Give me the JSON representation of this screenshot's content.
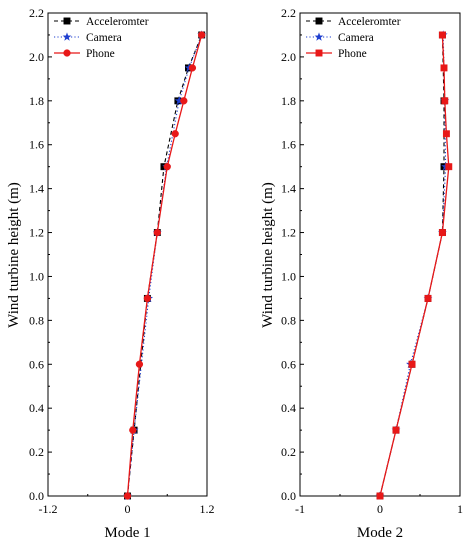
{
  "chart_data": [
    {
      "type": "line",
      "xlabel": "Mode 1",
      "ylabel": "Wind turbine height (m)",
      "xlim": [
        -1.2,
        1.2
      ],
      "ylim": [
        0,
        2.2
      ],
      "xticks": [
        "-1.2",
        "0",
        "1.2"
      ],
      "yticks": [
        "0.0",
        "0.2",
        "0.4",
        "0.6",
        "0.8",
        "1.0",
        "1.2",
        "1.4",
        "1.6",
        "1.8",
        "2.0",
        "2.2"
      ],
      "legend_position": "top-left",
      "grid": false,
      "series": [
        {
          "name": "Acceleromter",
          "color": "#000000",
          "marker": "square",
          "dash": "dashed",
          "x": [
            0.0,
            0.1,
            0.3,
            0.45,
            0.55,
            0.76,
            0.92,
            1.12
          ],
          "y": [
            0.0,
            0.3,
            0.9,
            1.2,
            1.5,
            1.8,
            1.95,
            2.1
          ]
        },
        {
          "name": "Camera",
          "color": "#1f3fcf",
          "marker": "star",
          "dash": "dotted",
          "x": [
            0.0,
            0.1,
            0.32,
            0.45,
            0.59,
            0.78,
            0.93,
            1.12
          ],
          "y": [
            0.0,
            0.3,
            0.9,
            1.2,
            1.5,
            1.8,
            1.95,
            2.1
          ]
        },
        {
          "name": "Phone",
          "color": "#e81818",
          "marker": "circle",
          "dash": "solid",
          "x": [
            0.0,
            0.08,
            0.18,
            0.3,
            0.45,
            0.6,
            0.72,
            0.85,
            0.98,
            1.12
          ],
          "y": [
            0.0,
            0.3,
            0.6,
            0.9,
            1.2,
            1.5,
            1.65,
            1.8,
            1.95,
            2.1
          ]
        }
      ]
    },
    {
      "type": "line",
      "xlabel": "Mode 2",
      "ylabel": "Wind turbine height (m)",
      "xlim": [
        -1,
        1
      ],
      "ylim": [
        0,
        2.2
      ],
      "xticks": [
        "-1",
        "0",
        "1"
      ],
      "yticks": [
        "0.0",
        "0.2",
        "0.4",
        "0.6",
        "0.8",
        "1.0",
        "1.2",
        "1.4",
        "1.6",
        "1.8",
        "2.0",
        "2.2"
      ],
      "legend_position": "top-left",
      "grid": false,
      "series": [
        {
          "name": "Acceleromter",
          "color": "#000000",
          "marker": "square",
          "dash": "dashed",
          "x": [
            0.0,
            0.2,
            0.4,
            0.6,
            0.78,
            0.8,
            0.8,
            0.78
          ],
          "y": [
            0.0,
            0.3,
            0.6,
            0.9,
            1.2,
            1.5,
            1.8,
            2.1
          ]
        },
        {
          "name": "Camera",
          "color": "#1f3fcf",
          "marker": "star",
          "dash": "dotted",
          "x": [
            0.0,
            0.2,
            0.38,
            0.6,
            0.78,
            0.82,
            0.81,
            0.79
          ],
          "y": [
            0.0,
            0.3,
            0.6,
            0.9,
            1.2,
            1.5,
            1.8,
            2.1
          ]
        },
        {
          "name": "Phone",
          "color": "#e81818",
          "marker": "square",
          "dash": "solid",
          "x": [
            0.0,
            0.2,
            0.4,
            0.6,
            0.78,
            0.86,
            0.83,
            0.81,
            0.8,
            0.78
          ],
          "y": [
            0.0,
            0.3,
            0.6,
            0.9,
            1.2,
            1.5,
            1.65,
            1.8,
            1.95,
            2.1
          ]
        }
      ]
    }
  ]
}
